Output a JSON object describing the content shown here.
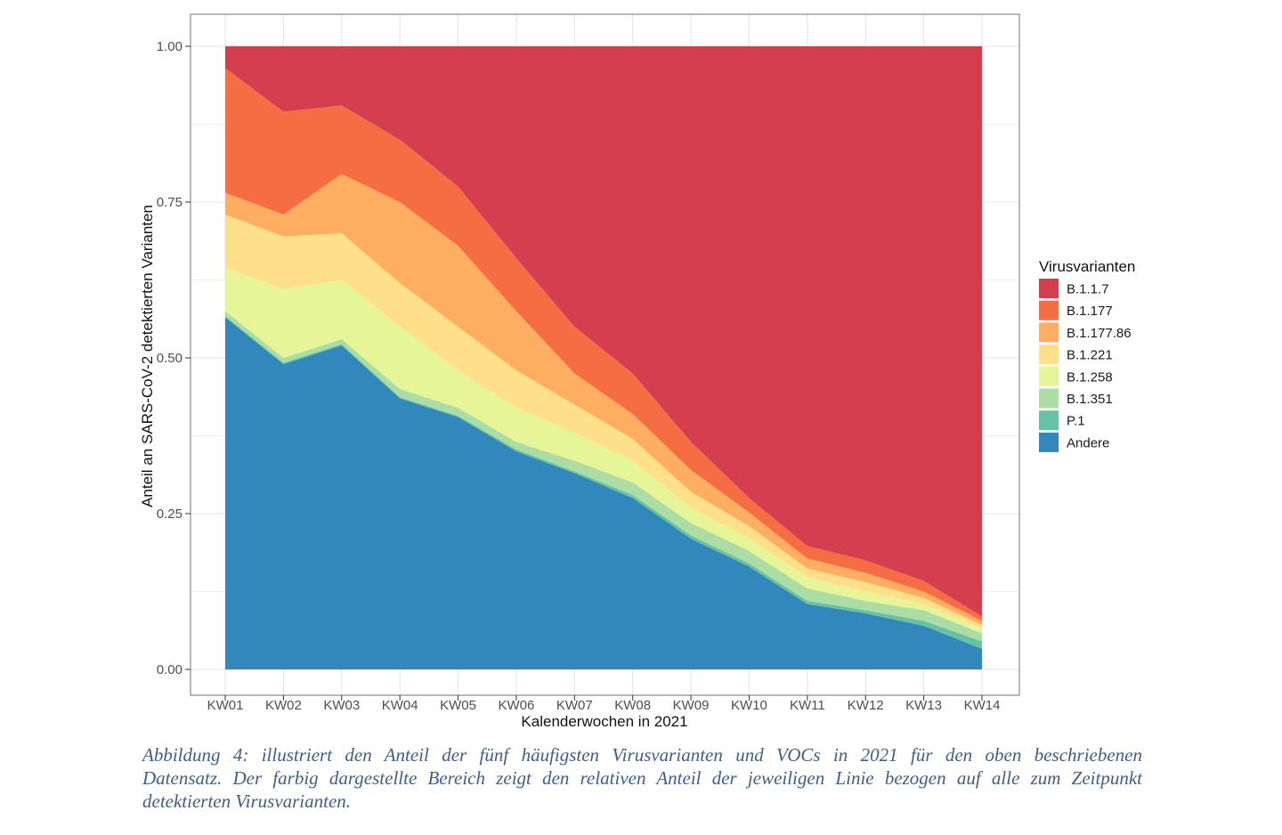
{
  "figure": {
    "background": "#ffffff"
  },
  "chart_data": {
    "type": "area",
    "stacked": true,
    "normalized": true,
    "title": "",
    "xlabel": "Kalenderwochen in 2021",
    "ylabel": "Anteil an SARS-CoV-2 detektierten Varianten",
    "legend_title": "Virusvarianten",
    "legend_position": "right",
    "grid": true,
    "ylim": [
      0,
      1
    ],
    "categories": [
      "KW01",
      "KW02",
      "KW03",
      "KW04",
      "KW05",
      "KW06",
      "KW07",
      "KW08",
      "KW09",
      "KW10",
      "KW11",
      "KW12",
      "KW13",
      "KW14"
    ],
    "y_ticks": [
      {
        "label": "1.00",
        "value": 1.0
      },
      {
        "label": "0.75",
        "value": 0.75
      },
      {
        "label": "0.50",
        "value": 0.5
      },
      {
        "label": "0.25",
        "value": 0.25
      },
      {
        "label": "0.00",
        "value": 0.0
      }
    ],
    "stack_note": "series listed in legend order (top to bottom); areas are stacked bottom-to-top in reverse order, i.e. Andere at the bottom and B.1.1.7 on top; values are shares per calendar week summing to 1.0",
    "series": [
      {
        "name": "B.1.1.7",
        "color": "#d53e4f",
        "values": [
          0.035,
          0.105,
          0.095,
          0.15,
          0.225,
          0.34,
          0.45,
          0.525,
          0.635,
          0.725,
          0.802,
          0.825,
          0.858,
          0.915
        ]
      },
      {
        "name": "B.1.177",
        "color": "#f46d43",
        "values": [
          0.2,
          0.165,
          0.11,
          0.1,
          0.095,
          0.085,
          0.075,
          0.065,
          0.045,
          0.023,
          0.02,
          0.02,
          0.017,
          0.007
        ]
      },
      {
        "name": "B.1.177.86",
        "color": "#fdae61",
        "values": [
          0.035,
          0.035,
          0.095,
          0.13,
          0.13,
          0.095,
          0.05,
          0.04,
          0.035,
          0.022,
          0.016,
          0.015,
          0.01,
          0.007
        ]
      },
      {
        "name": "B.1.221",
        "color": "#fee08b",
        "values": [
          0.085,
          0.085,
          0.075,
          0.07,
          0.07,
          0.06,
          0.045,
          0.035,
          0.025,
          0.02,
          0.014,
          0.015,
          0.01,
          0.006
        ]
      },
      {
        "name": "B.1.258",
        "color": "#e6f598",
        "values": [
          0.07,
          0.11,
          0.095,
          0.1,
          0.06,
          0.055,
          0.045,
          0.035,
          0.025,
          0.02,
          0.018,
          0.015,
          0.01,
          0.007
        ]
      },
      {
        "name": "B.1.351",
        "color": "#abdda4",
        "values": [
          0.008,
          0.008,
          0.008,
          0.013,
          0.013,
          0.012,
          0.017,
          0.02,
          0.02,
          0.02,
          0.02,
          0.015,
          0.017,
          0.013
        ]
      },
      {
        "name": "P.1",
        "color": "#66c2a5",
        "values": [
          0.002,
          0.002,
          0.002,
          0.002,
          0.002,
          0.003,
          0.003,
          0.005,
          0.005,
          0.005,
          0.005,
          0.005,
          0.008,
          0.012
        ]
      },
      {
        "name": "Andere",
        "color": "#3288bd",
        "values": [
          0.565,
          0.49,
          0.52,
          0.435,
          0.405,
          0.35,
          0.315,
          0.275,
          0.21,
          0.165,
          0.105,
          0.09,
          0.07,
          0.033
        ]
      }
    ]
  },
  "theme": {
    "panel_border": "#898989",
    "grid_major": "#e3e3e3",
    "grid_minor": "#f1f1f1",
    "tick_mark": "#333333",
    "tick_label_color": "#4d4d4d",
    "axis_title_color": "#111111"
  },
  "caption": {
    "color": "#3f5e87",
    "lines": [
      "Abbildung 4: illustriert den Anteil der fünf häufigsten Virusvarianten und VOCs in 2021 für den oben beschriebenen",
      "Datensatz. Der farbig dargestellte Bereich zeigt den relativen Anteil der jeweiligen Linie bezogen auf alle zum Zeitpunkt",
      "detektierten Virusvarianten."
    ]
  }
}
